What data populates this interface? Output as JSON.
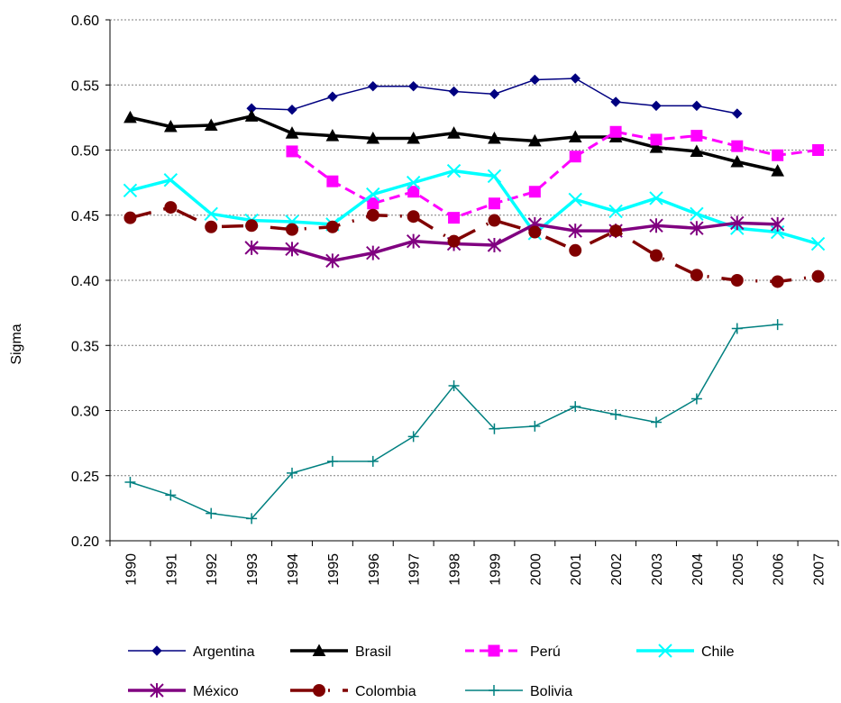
{
  "chart_data": {
    "type": "line",
    "title": "",
    "xlabel": "",
    "ylabel": "Sigma",
    "ylim": [
      0.2,
      0.6
    ],
    "yticks": [
      "0.20",
      "0.25",
      "0.30",
      "0.35",
      "0.40",
      "0.45",
      "0.50",
      "0.55",
      "0.60"
    ],
    "grid": "horizontal",
    "legend_position": "bottom",
    "x": [
      "1990",
      "1991",
      "1992",
      "1993",
      "1994",
      "1995",
      "1996",
      "1997",
      "1998",
      "1999",
      "2000",
      "2001",
      "2002",
      "2003",
      "2004",
      "2005",
      "2006",
      "2007"
    ],
    "series": [
      {
        "name": "Argentina",
        "color": "#000080",
        "marker": "diamond",
        "dash": "solid",
        "width": 1.5,
        "values": [
          null,
          null,
          null,
          0.532,
          0.531,
          0.541,
          0.549,
          0.549,
          0.545,
          0.543,
          0.554,
          0.555,
          0.537,
          0.534,
          0.534,
          0.528,
          null,
          null
        ]
      },
      {
        "name": "Brasil",
        "color": "#000000",
        "marker": "triangle",
        "dash": "solid",
        "width": 3.5,
        "values": [
          0.525,
          0.518,
          0.519,
          0.526,
          0.513,
          0.511,
          0.509,
          0.509,
          0.513,
          0.509,
          0.507,
          0.51,
          0.51,
          0.502,
          0.499,
          0.491,
          0.484,
          null
        ]
      },
      {
        "name": "Perú",
        "color": "#ff00ff",
        "marker": "square",
        "dash": "dash",
        "width": 3,
        "values": [
          null,
          null,
          null,
          null,
          0.499,
          0.476,
          0.459,
          0.468,
          0.448,
          0.459,
          0.468,
          0.495,
          0.514,
          0.508,
          0.511,
          0.503,
          0.496,
          0.5
        ]
      },
      {
        "name": "Chile",
        "color": "#00ffff",
        "marker": "x",
        "dash": "solid",
        "width": 3.5,
        "values": [
          0.469,
          0.477,
          0.451,
          0.446,
          0.445,
          0.443,
          0.466,
          0.475,
          0.484,
          0.48,
          0.436,
          0.462,
          0.453,
          0.463,
          0.451,
          0.44,
          0.437,
          0.428
        ]
      },
      {
        "name": "México",
        "color": "#800080",
        "marker": "star",
        "dash": "solid",
        "width": 3.5,
        "values": [
          null,
          null,
          null,
          0.425,
          0.424,
          0.415,
          0.421,
          0.43,
          0.428,
          0.427,
          0.443,
          0.438,
          0.438,
          0.442,
          0.44,
          0.444,
          0.443,
          null
        ]
      },
      {
        "name": "Colombia",
        "color": "#800000",
        "marker": "circle",
        "dash": "dashdot",
        "width": 3.5,
        "values": [
          0.448,
          0.456,
          0.441,
          0.442,
          0.439,
          0.441,
          0.45,
          0.449,
          0.43,
          0.446,
          0.437,
          0.423,
          0.438,
          0.419,
          0.404,
          0.4,
          0.399,
          0.403
        ]
      },
      {
        "name": "Bolivia",
        "color": "#008080",
        "marker": "plus",
        "dash": "solid",
        "width": 1.5,
        "values": [
          0.245,
          0.235,
          0.221,
          0.217,
          0.252,
          0.261,
          0.261,
          0.28,
          0.319,
          0.286,
          0.288,
          0.303,
          0.297,
          0.291,
          0.309,
          0.363,
          0.366,
          null
        ]
      }
    ]
  }
}
